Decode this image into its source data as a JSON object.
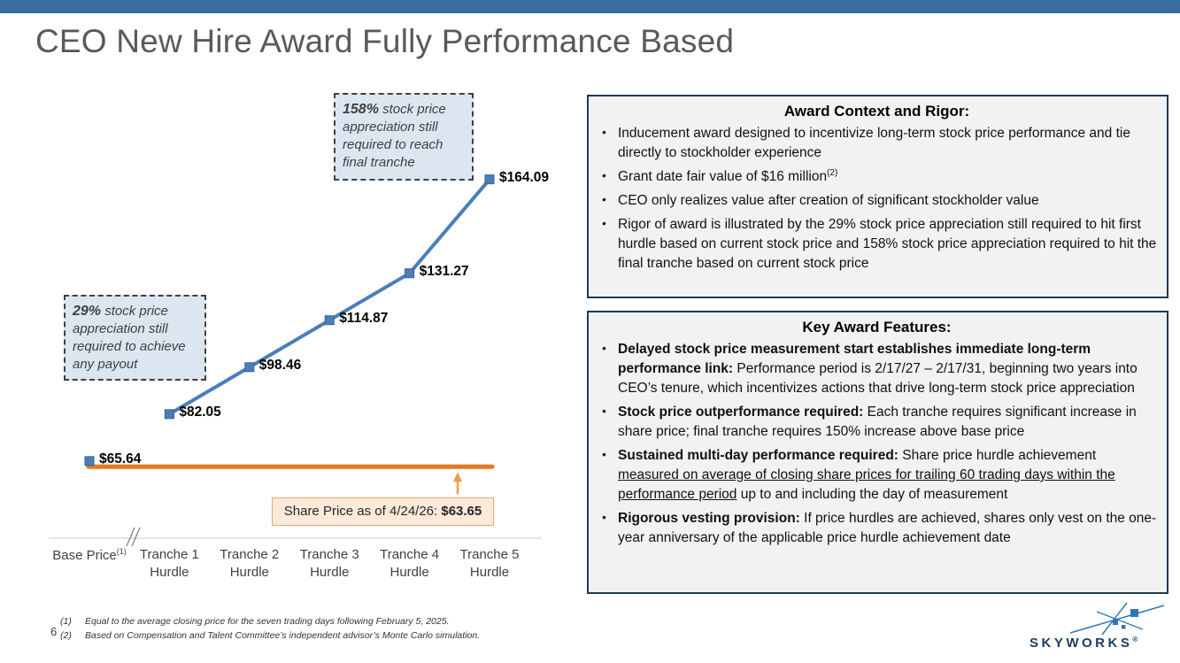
{
  "title": "CEO New Hire Award Fully Performance Based",
  "chart_data": {
    "type": "line",
    "title": "",
    "xlabel": "",
    "ylabel": "",
    "grid": false,
    "legend": "none",
    "ylim": [
      60,
      170
    ],
    "categories": [
      {
        "line1": "Base Price",
        "sup": "(1)",
        "line2": ""
      },
      {
        "line1": "Tranche 1",
        "sup": "",
        "line2": "Hurdle"
      },
      {
        "line1": "Tranche 2",
        "sup": "",
        "line2": "Hurdle"
      },
      {
        "line1": "Tranche 3",
        "sup": "",
        "line2": "Hurdle"
      },
      {
        "line1": "Tranche 4",
        "sup": "",
        "line2": "Hurdle"
      },
      {
        "line1": "Tranche 5",
        "sup": "",
        "line2": "Hurdle"
      }
    ],
    "values": [
      65.64,
      82.05,
      98.46,
      114.87,
      131.27,
      164.09
    ],
    "point_labels": [
      "$65.64",
      "$82.05",
      "$98.46",
      "$114.87",
      "$131.27",
      "$164.09"
    ],
    "current_price_value": 63.65,
    "annotations": {
      "callout_final": {
        "pct": "158%",
        "text": " stock price appreciation still required to reach final tranche"
      },
      "callout_first": {
        "pct": "29%",
        "text": " stock price appreciation still required to achieve any payout"
      },
      "share_price": {
        "label": "Share Price as of 4/24/26: ",
        "value": "$63.65"
      }
    },
    "colors": {
      "line": "#4a7ebb",
      "marker_edge": "#38618f",
      "baseline": "#e87722",
      "arrow": "#ef9b49",
      "axis": "#d6d6d6"
    }
  },
  "award_context": {
    "title": "Award Context and Rigor:",
    "bullets": [
      "Inducement award designed to incentivize long-term stock price performance and tie directly to stockholder experience",
      {
        "text": "Grant date fair value of $16 million",
        "sup": "(2)"
      },
      "CEO only realizes value after creation of significant stockholder value",
      "Rigor of award is illustrated by the 29% stock price appreciation still required to hit first hurdle based on current stock price and 158% stock price appreciation required to hit the final tranche based on current stock price"
    ]
  },
  "key_features": {
    "title": "Key Award Features:",
    "bullets": [
      {
        "bold": "Delayed stock price measurement start establishes immediate long-term performance link:",
        "text": " Performance period is 2/17/27 – 2/17/31, beginning two years into CEO’s tenure, which incentivizes actions that drive long-term stock price appreciation"
      },
      {
        "bold": "Stock price outperformance required:",
        "text": " Each tranche requires significant increase in share price; final tranche requires 150% increase above base price"
      },
      {
        "bold": "Sustained multi-day performance required:",
        "text": " Share price hurdle achievement ",
        "underline": "measured on average of closing share prices for trailing 60 trading days within the performance period",
        "text_after": " up to and including the day of measurement"
      },
      {
        "bold": "Rigorous vesting provision:",
        "text": " If price hurdles are achieved, shares only vest on the one-year anniversary of the applicable price hurdle achievement date"
      }
    ]
  },
  "footnotes": [
    {
      "num": "(1)",
      "text": "Equal to the average closing price for the seven trading days following February 5, 2025."
    },
    {
      "num": "(2)",
      "text": "Based on Compensation and Talent Committee’s independent advisor’s Monte Carlo simulation."
    }
  ],
  "page_number": "6",
  "logo": {
    "text": "SKYWORKS",
    "reg": "®"
  }
}
